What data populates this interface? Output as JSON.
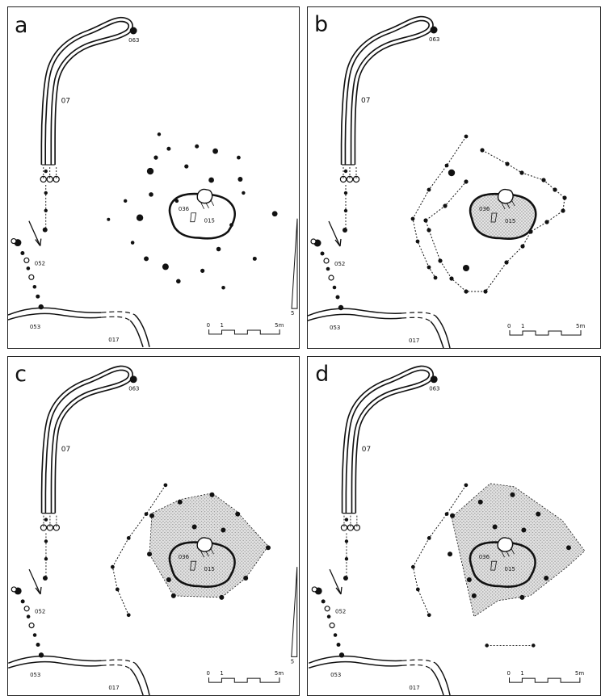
{
  "panels": [
    {
      "label": "a",
      "variant": "posts"
    },
    {
      "label": "b",
      "variant": "rings"
    },
    {
      "label": "c",
      "variant": "hull-small"
    },
    {
      "label": "d",
      "variant": "hull-large"
    }
  ],
  "features": {
    "f063": "063",
    "f07": "07",
    "f052": "052",
    "f053": "053",
    "f017": "017",
    "f036": "036",
    "f015": "015"
  },
  "scale": {
    "start": "0",
    "mid": "1",
    "end": "5m"
  },
  "north": {
    "label": "5"
  },
  "colors": {
    "ink": "#111111",
    "hatch": "#9a9a9a",
    "frame": "#222222"
  }
}
